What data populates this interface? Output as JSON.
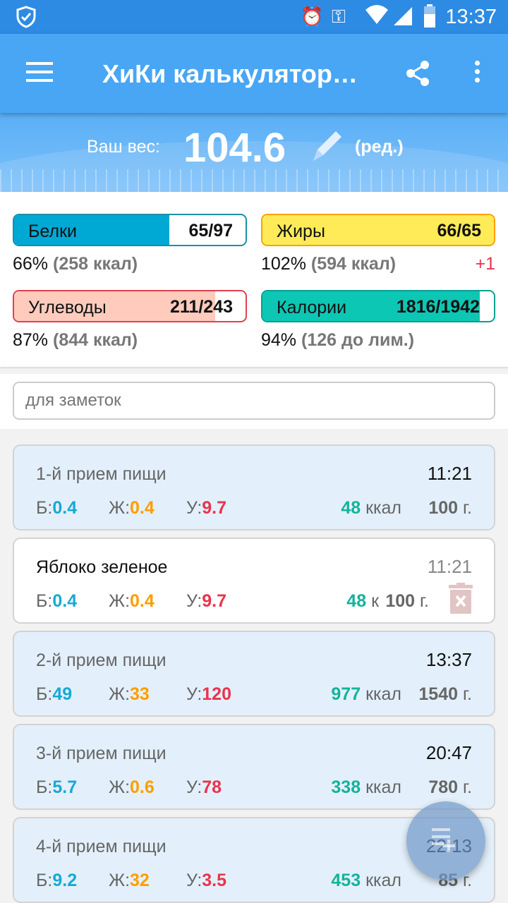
{
  "status": {
    "time": "13:37",
    "icons": [
      "shield-check-icon",
      "alarm-icon",
      "key-icon",
      "wifi-icon",
      "signal-icon",
      "battery-icon"
    ]
  },
  "appbar": {
    "title": "ХиКи калькулятор…",
    "icons": [
      "menu-icon",
      "share-icon",
      "more-vert-icon"
    ]
  },
  "weight": {
    "label": "Ваш вес:",
    "value": "104.6",
    "edit": "(ред.)"
  },
  "stats": {
    "protein": {
      "name": "Белки",
      "value": "65/97",
      "percent": "66%",
      "kcal": "(258 ккал)",
      "fill": 0.67,
      "color": "#00a9d4",
      "border": "#1a8fa8"
    },
    "fat": {
      "name": "Жиры",
      "value": "66/65",
      "percent": "102%",
      "kcal": "(594 ккал)",
      "extra": "+1",
      "fill": 1.0,
      "color": "#ffeb57",
      "border": "#ffa000"
    },
    "carbs": {
      "name": "Углеводы",
      "value": "211/243",
      "percent": "87%",
      "kcal": "(844 ккал)",
      "fill": 0.87,
      "color": "#ffcbbd",
      "border": "#e04050"
    },
    "calories": {
      "name": "Калории",
      "value": "1816/1942",
      "percent": "94%",
      "kcal": "(126 до лим.)",
      "fill": 0.94,
      "color": "#0cc7b3",
      "border": "#0aa090"
    }
  },
  "notes": {
    "placeholder": "для заметок"
  },
  "labels": {
    "p": "Б:",
    "f": "Ж:",
    "c": "У:",
    "kcal": "ккал",
    "k": "к",
    "g": "г."
  },
  "colors": {
    "p": "#17a9d6",
    "f": "#ff9d00",
    "c": "#e8344e"
  },
  "entries": [
    {
      "type": "meal",
      "title": "1-й прием пищи",
      "time": "11:21",
      "p": "0.4",
      "f": "0.4",
      "c": "9.7",
      "kcal": "48",
      "grams": "100"
    },
    {
      "type": "item",
      "title": "Яблоко зеленое",
      "time": "11:21",
      "p": "0.4",
      "f": "0.4",
      "c": "9.7",
      "kcal": "48",
      "grams": "100"
    },
    {
      "type": "meal",
      "title": "2-й прием пищи",
      "time": "13:37",
      "p": "49",
      "f": "33",
      "c": "120",
      "kcal": "977",
      "grams": "1540"
    },
    {
      "type": "meal",
      "title": "3-й прием пищи",
      "time": "20:47",
      "p": "5.7",
      "f": "0.6",
      "c": "78",
      "kcal": "338",
      "grams": "780"
    },
    {
      "type": "meal",
      "title": "4-й прием пищи",
      "time": "22:13",
      "p": "9.2",
      "f": "32",
      "c": "3.5",
      "kcal": "453",
      "grams": "85"
    }
  ]
}
